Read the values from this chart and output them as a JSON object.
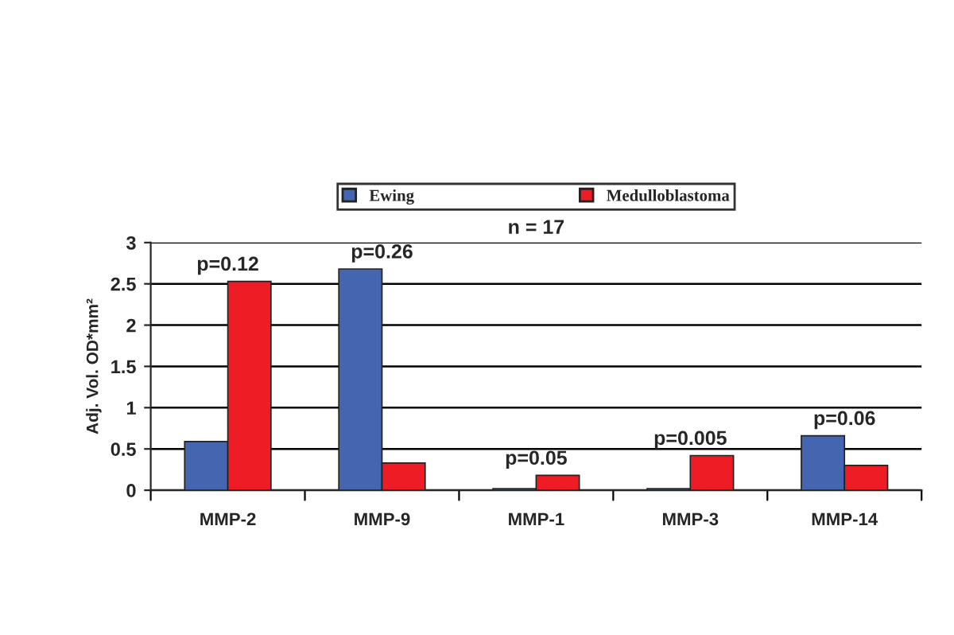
{
  "chart_data": {
    "type": "bar",
    "title": "n = 17",
    "ylabel": "Adj. Vol. OD*mm²",
    "categories": [
      "MMP-2",
      "MMP-9",
      "MMP-1",
      "MMP-3",
      "MMP-14"
    ],
    "series": [
      {
        "name": "Ewing",
        "color": "#4466b0",
        "values": [
          0.59,
          2.68,
          0.02,
          0.02,
          0.66
        ]
      },
      {
        "name": "Medulloblastoma",
        "color": "#ee1c24",
        "values": [
          2.53,
          0.33,
          0.18,
          0.42,
          0.3
        ]
      }
    ],
    "ylim": [
      0,
      3
    ],
    "yticks": [
      0,
      0.5,
      1,
      1.5,
      2,
      2.5,
      3
    ],
    "grid": "y",
    "legend": "top",
    "annotations": [
      {
        "text": "p=0.12",
        "x": "MMP-2",
        "y": 2.53
      },
      {
        "text": "p=0.26",
        "x": "MMP-9",
        "y": 2.68
      },
      {
        "text": "p=0.05",
        "x": "MMP-1",
        "y": 0.18
      },
      {
        "text": "p=0.005",
        "x": "MMP-3",
        "y": 0.42
      },
      {
        "text": "p=0.06",
        "x": "MMP-14",
        "y": 0.66
      }
    ]
  }
}
